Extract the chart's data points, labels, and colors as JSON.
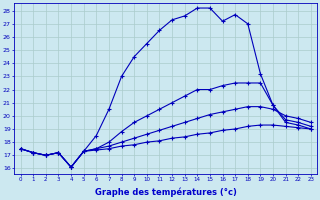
{
  "background_color": "#cce8f0",
  "grid_color": "#aacccc",
  "line_color": "#0000bb",
  "xlabel": "Graphe des températures (°c)",
  "xlabel_color": "#0000cc",
  "ylabel_ticks": [
    16,
    17,
    18,
    19,
    20,
    21,
    22,
    23,
    24,
    25,
    26,
    27,
    28
  ],
  "xlim": [
    -0.5,
    23.5
  ],
  "ylim": [
    15.6,
    28.6
  ],
  "xtick_labels": [
    "0",
    "1",
    "2",
    "3",
    "4",
    "5",
    "6",
    "7",
    "8",
    "9",
    "10",
    "11",
    "12",
    "13",
    "14",
    "15",
    "16",
    "17",
    "18",
    "19",
    "20",
    "21",
    "22",
    "23"
  ],
  "series": [
    {
      "x": [
        0,
        1,
        2,
        3,
        4,
        5,
        6,
        7,
        8,
        9,
        10,
        11,
        12,
        13,
        14,
        15,
        16,
        17,
        18,
        19,
        20,
        21,
        22,
        23
      ],
      "y": [
        17.5,
        17.2,
        17.0,
        17.2,
        16.1,
        17.3,
        18.5,
        20.5,
        23.0,
        24.5,
        25.5,
        26.5,
        27.3,
        27.6,
        28.2,
        28.2,
        27.2,
        27.7,
        27.0,
        23.2,
        20.8,
        19.5,
        19.3,
        19.0
      ],
      "marker": "+"
    },
    {
      "x": [
        0,
        1,
        2,
        3,
        4,
        5,
        6,
        7,
        8,
        9,
        10,
        11,
        12,
        13,
        14,
        15,
        16,
        17,
        18,
        19,
        20,
        21,
        22,
        23
      ],
      "y": [
        17.5,
        17.2,
        17.0,
        17.2,
        16.1,
        17.3,
        17.5,
        18.0,
        18.8,
        19.5,
        20.0,
        20.5,
        21.0,
        21.5,
        22.0,
        22.0,
        22.3,
        22.5,
        22.5,
        22.5,
        20.8,
        19.7,
        19.5,
        19.2
      ],
      "marker": "+"
    },
    {
      "x": [
        0,
        1,
        2,
        3,
        4,
        5,
        6,
        7,
        8,
        9,
        10,
        11,
        12,
        13,
        14,
        15,
        16,
        17,
        18,
        19,
        20,
        21,
        22,
        23
      ],
      "y": [
        17.5,
        17.2,
        17.0,
        17.2,
        16.1,
        17.3,
        17.5,
        17.7,
        18.0,
        18.3,
        18.6,
        18.9,
        19.2,
        19.5,
        19.8,
        20.1,
        20.3,
        20.5,
        20.7,
        20.7,
        20.5,
        20.0,
        19.8,
        19.5
      ],
      "marker": "+"
    },
    {
      "x": [
        0,
        1,
        2,
        3,
        4,
        5,
        6,
        7,
        8,
        9,
        10,
        11,
        12,
        13,
        14,
        15,
        16,
        17,
        18,
        19,
        20,
        21,
        22,
        23
      ],
      "y": [
        17.5,
        17.2,
        17.0,
        17.2,
        16.1,
        17.3,
        17.4,
        17.5,
        17.7,
        17.8,
        18.0,
        18.1,
        18.3,
        18.4,
        18.6,
        18.7,
        18.9,
        19.0,
        19.2,
        19.3,
        19.3,
        19.2,
        19.1,
        19.0
      ],
      "marker": "+"
    }
  ]
}
